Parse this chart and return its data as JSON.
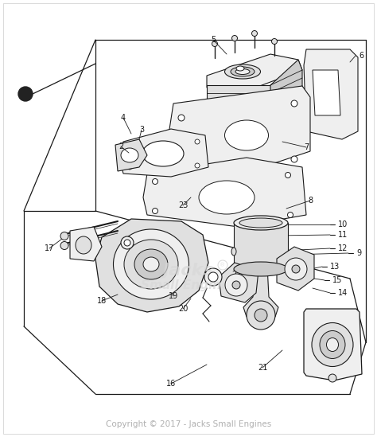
{
  "background_color": "#ffffff",
  "line_color": "#1a1a1a",
  "label_color": "#1a1a1a",
  "copyright_text": "Copyright © 2017 - Jacks Small Engines",
  "copyright_color": "#b0b0b0",
  "watermark_text1": "Jacks",
  "watermark_text2": "Small Engines",
  "watermark_color": "#d8d8d8",
  "fill_light": "#efefef",
  "fill_mid": "#e0e0e0",
  "fill_dark": "#cccccc",
  "fill_white": "#ffffff"
}
